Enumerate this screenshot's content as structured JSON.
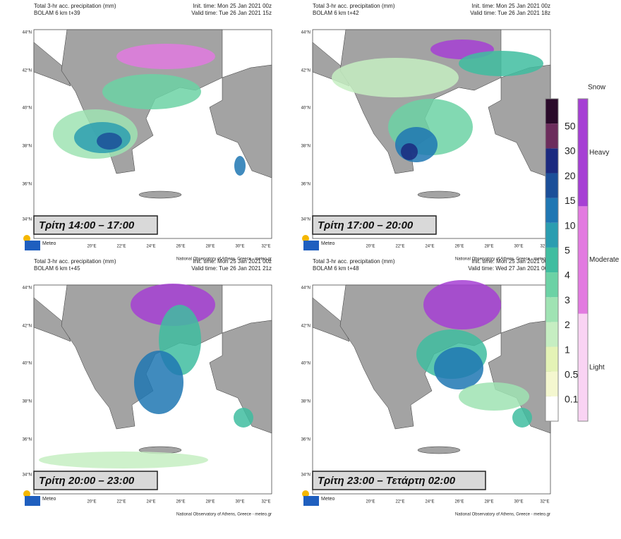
{
  "panels": [
    {
      "title": "Total 3-hr acc. precipitation (mm)",
      "model": "BOLAM 6 km t+39",
      "init": "Init. time: Mon 25 Jan 2021 00z",
      "valid": "Valid time: Tue 26 Jan 2021 15z",
      "caption": "Τρίτη 14:00 – 17:00"
    },
    {
      "title": "Total 3-hr acc. precipitation (mm)",
      "model": "BOLAM 6 km t+42",
      "init": "Init. time: Mon 25 Jan 2021 00z",
      "valid": "Valid time: Tue 26 Jan 2021 18z",
      "caption": "Τρίτη 17:00 – 20:00"
    },
    {
      "title": "Total 3-hr acc. precipitation (mm)",
      "model": "BOLAM 6 km t+45",
      "init": "Init. time: Mon 25 Jan 2021 00z",
      "valid": "Valid time: Tue 26 Jan 2021 21z",
      "caption": "Τρίτη 20:00 – 23:00"
    },
    {
      "title": "Total 3-hr acc. precipitation (mm)",
      "model": "BOLAM 6 km t+48",
      "init": "Init. time: Mon 25 Jan 2021 00z",
      "valid": "Valid time: Wed 27 Jan 2021 00z",
      "caption": "Τρίτη 23:00 –  Τετάρτη 02:00"
    }
  ],
  "lat_labels": [
    "44°N",
    "42°N",
    "40°N",
    "38°N",
    "36°N",
    "34°N"
  ],
  "lon_labels": [
    "20°E",
    "22°E",
    "24°E",
    "26°E",
    "28°E",
    "30°E",
    "32°E"
  ],
  "logo": "Meteo",
  "footer": "National Observatory of Athens, Greece - meteo.gr",
  "legend": {
    "levels": [
      "0.1",
      "0.5",
      "1",
      "2",
      "3",
      "4",
      "5",
      "10",
      "15",
      "20",
      "30",
      "50"
    ],
    "colors": [
      "#ffffff",
      "#f4f7cf",
      "#e4f3b6",
      "#c6eec2",
      "#9fe3b3",
      "#6cd2a5",
      "#40bda0",
      "#2b9db0",
      "#1f77b3",
      "#1b4f99",
      "#1b2a7f",
      "#6c2d5c",
      "#2a0a2a"
    ],
    "snow": {
      "title": "Snow",
      "levels": [
        "Light",
        "Moderate",
        "Heavy"
      ],
      "colors": [
        "#f9d3f3",
        "#e27ae0",
        "#a63fd4"
      ]
    }
  }
}
